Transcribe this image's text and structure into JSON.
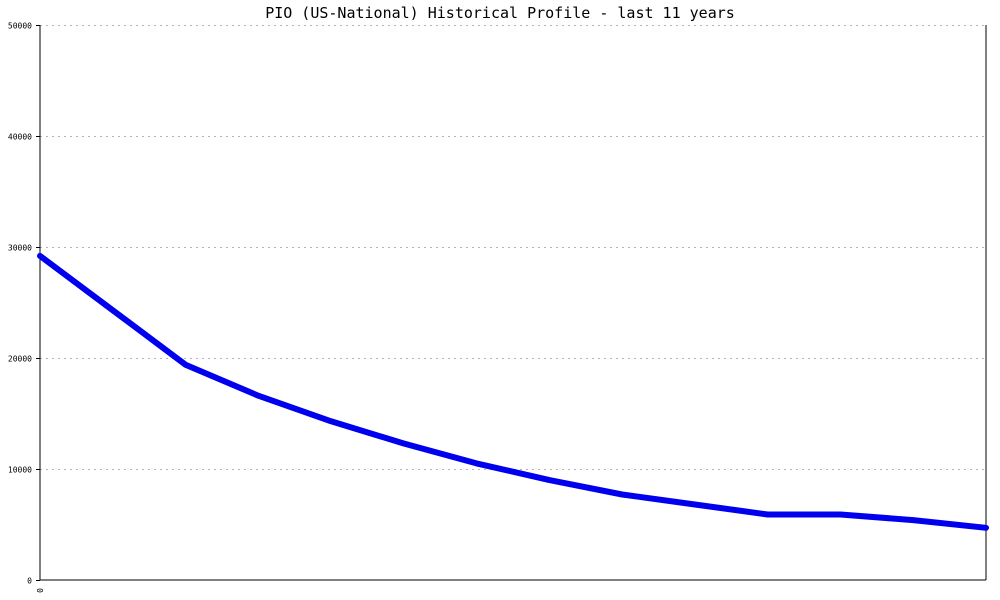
{
  "chart_data": {
    "type": "line",
    "title": "PIO (US-National) Historical Profile - last 11 years",
    "xlabel": "",
    "ylabel": "",
    "x_tick_labels": [
      "0"
    ],
    "y_ticks": [
      0,
      10000,
      20000,
      30000,
      40000,
      50000
    ],
    "ylim": [
      0,
      50000
    ],
    "grid": true,
    "series": [
      {
        "color": "#0000ee",
        "values": [
          29200,
          24300,
          19400,
          16600,
          14300,
          12300,
          10500,
          9000,
          7700,
          6800,
          5900,
          5900,
          5400,
          4700
        ]
      }
    ]
  }
}
